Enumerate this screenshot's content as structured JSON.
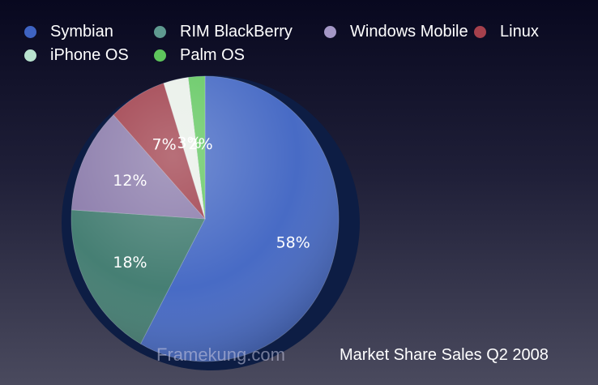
{
  "chart_data": {
    "type": "pie",
    "title": "Market Share Sales Q2 2008",
    "legend_position": "top",
    "series": [
      {
        "name": "Symbian",
        "value": 58,
        "label": "58%",
        "color": "#3e63c2"
      },
      {
        "name": "RIM BlackBerry",
        "value": 18,
        "label": "18%",
        "color": "#3c786c"
      },
      {
        "name": "Windows Mobile",
        "value": 12,
        "label": "12%",
        "color": "#8777a8"
      },
      {
        "name": "Linux",
        "value": 7,
        "label": "7%",
        "color": "#9c3845"
      },
      {
        "name": "iPhone OS",
        "value": 3,
        "label": "3%",
        "color": "#e8efe8"
      },
      {
        "name": "Palm OS",
        "value": 2,
        "label": "2%",
        "color": "#5ec65c"
      }
    ]
  },
  "watermark": "Framekung.com"
}
